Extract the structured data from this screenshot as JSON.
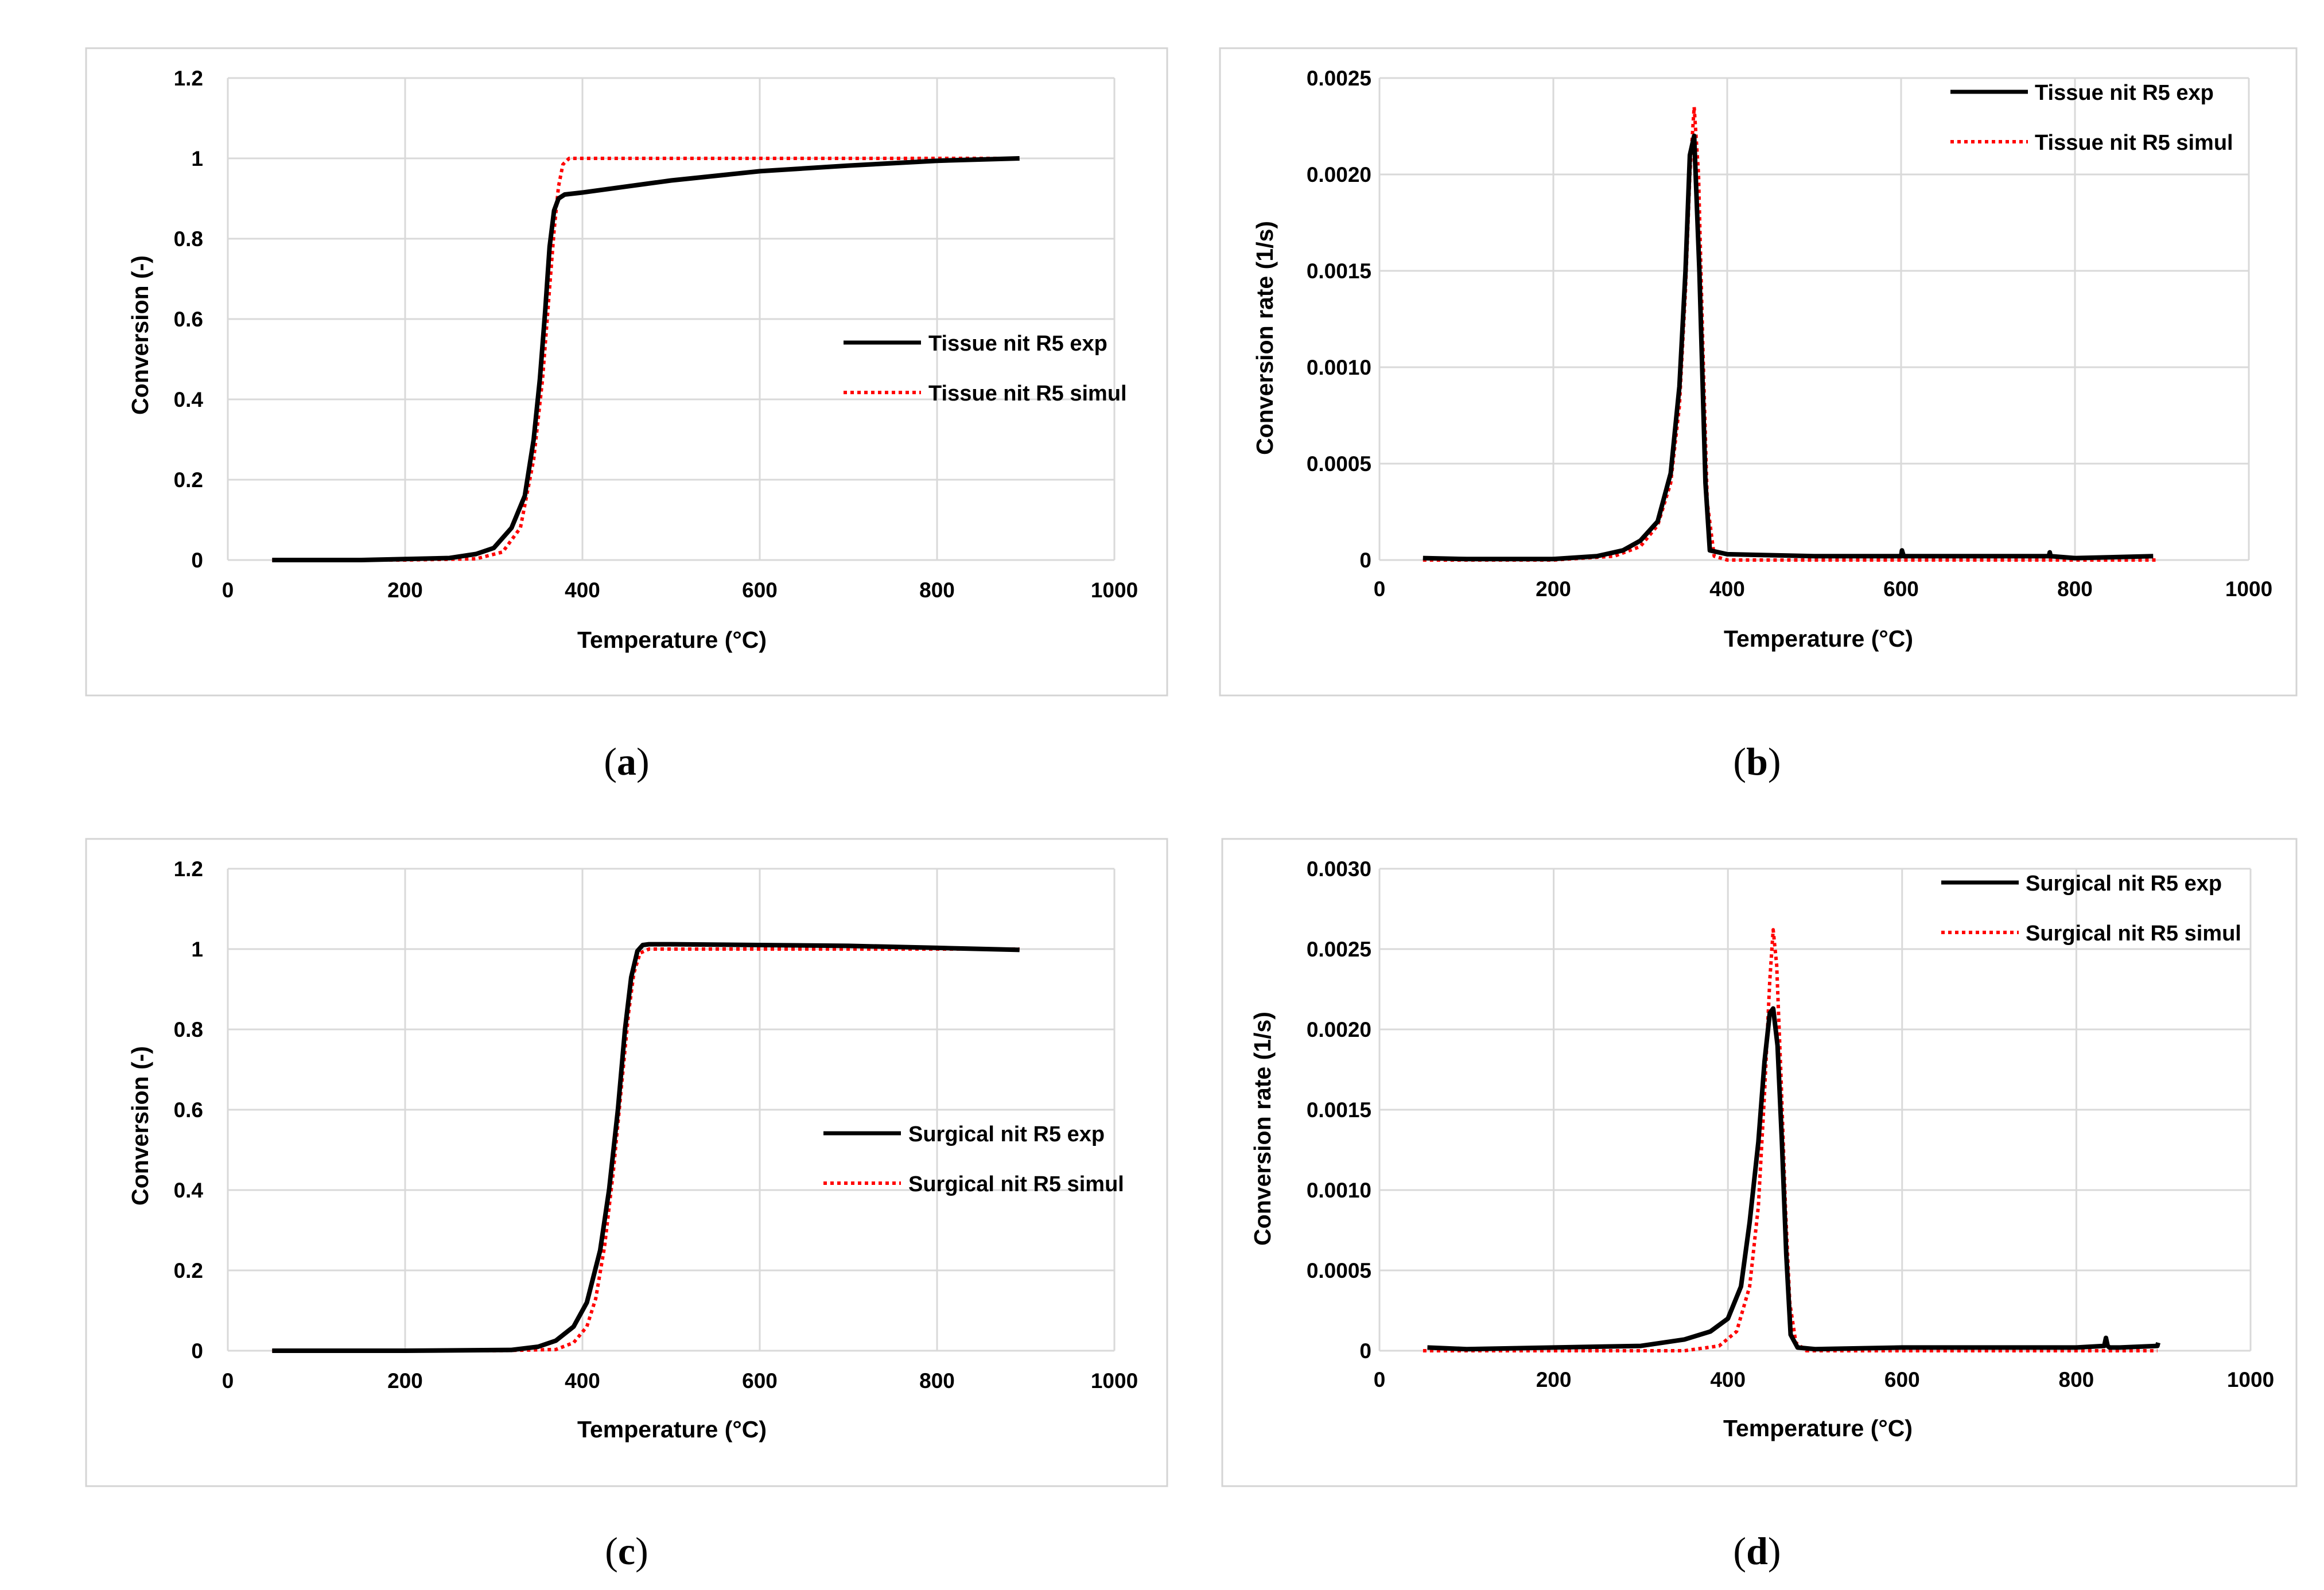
{
  "captions": [
    {
      "open": "(",
      "letter": "a",
      "close": ")"
    },
    {
      "open": "(",
      "letter": "b",
      "close": ")"
    },
    {
      "open": "(",
      "letter": "c",
      "close": ")"
    },
    {
      "open": "(",
      "letter": "d",
      "close": ")"
    }
  ],
  "colors": {
    "exp": "#000000",
    "simul": "#ff0000"
  },
  "chart_data": [
    {
      "id": "a",
      "type": "line",
      "xlabel": "Temperature (°C)",
      "ylabel": "Conversion (-)",
      "xlim": [
        0,
        1000
      ],
      "ylim": [
        0,
        1.2
      ],
      "xticks": [
        0,
        200,
        400,
        600,
        800,
        1000
      ],
      "yticks": [
        0,
        0.2,
        0.4,
        0.6,
        0.8,
        1,
        1.2
      ],
      "yticklabels": [
        "0",
        "0.2",
        "0.4",
        "0.6",
        "0.8",
        "1",
        "1.2"
      ],
      "legend_position": "center-right",
      "series": [
        {
          "name": "Tissue nit R5 exp",
          "style": "solid",
          "x": [
            50,
            150,
            250,
            280,
            300,
            320,
            335,
            345,
            352,
            358,
            363,
            368,
            373,
            380,
            400,
            500,
            600,
            700,
            800,
            893
          ],
          "y": [
            0,
            0,
            0.005,
            0.015,
            0.03,
            0.08,
            0.16,
            0.3,
            0.45,
            0.62,
            0.78,
            0.87,
            0.9,
            0.91,
            0.915,
            0.945,
            0.968,
            0.982,
            0.994,
            1.0
          ]
        },
        {
          "name": "Tissue nit R5 simul",
          "style": "dotted",
          "x": [
            50,
            200,
            280,
            310,
            330,
            345,
            355,
            362,
            368,
            373,
            378,
            385,
            400,
            600,
            893
          ],
          "y": [
            0,
            0,
            0.003,
            0.02,
            0.08,
            0.25,
            0.45,
            0.65,
            0.82,
            0.93,
            0.985,
            1.0,
            1.0,
            1.0,
            1.0
          ]
        }
      ]
    },
    {
      "id": "b",
      "type": "line",
      "xlabel": "Temperature (°C)",
      "ylabel": "Conversion rate (1/s)",
      "xlim": [
        0,
        1000
      ],
      "ylim": [
        0,
        0.0025
      ],
      "xticks": [
        0,
        200,
        400,
        600,
        800,
        1000
      ],
      "yticks": [
        0,
        0.0005,
        0.001,
        0.0015,
        0.002,
        0.0025
      ],
      "yticklabels": [
        "0",
        "0.0005",
        "0.0010",
        "0.0015",
        "0.0020",
        "0.0025"
      ],
      "legend_position": "top-right",
      "series": [
        {
          "name": "Tissue nit R5 exp",
          "style": "solid",
          "x": [
            50,
            100,
            200,
            250,
            280,
            300,
            320,
            335,
            345,
            352,
            357,
            362,
            368,
            375,
            380,
            400,
            500,
            600,
            601,
            603,
            700,
            770,
            771,
            772,
            800,
            890
          ],
          "y": [
            1e-05,
            5e-06,
            5e-06,
            2e-05,
            5e-05,
            0.0001,
            0.0002,
            0.00045,
            0.0009,
            0.0015,
            0.0021,
            0.0022,
            0.0015,
            0.0004,
            5e-05,
            3e-05,
            2e-05,
            2e-05,
            5e-05,
            2e-05,
            2e-05,
            2e-05,
            4e-05,
            2e-05,
            1e-05,
            2e-05
          ]
        },
        {
          "name": "Tissue nit R5 simul",
          "style": "dotted",
          "x": [
            50,
            200,
            270,
            300,
            320,
            335,
            345,
            352,
            357,
            362,
            367,
            372,
            377,
            385,
            400,
            893
          ],
          "y": [
            0,
            0,
            2e-05,
            7e-05,
            0.00018,
            0.0004,
            0.0008,
            0.0014,
            0.002,
            0.00235,
            0.002,
            0.0011,
            0.0003,
            2e-05,
            0,
            0
          ]
        }
      ]
    },
    {
      "id": "c",
      "type": "line",
      "xlabel": "Temperature (°C)",
      "ylabel": "Conversion (-)",
      "xlim": [
        0,
        1000
      ],
      "ylim": [
        0,
        1.2
      ],
      "xticks": [
        0,
        200,
        400,
        600,
        800,
        1000
      ],
      "yticks": [
        0,
        0.2,
        0.4,
        0.6,
        0.8,
        1,
        1.2
      ],
      "yticklabels": [
        "0",
        "0.2",
        "0.4",
        "0.6",
        "0.8",
        "1",
        "1.2"
      ],
      "legend_position": "center-right",
      "series": [
        {
          "name": "Surgical nit R5 exp",
          "style": "solid",
          "x": [
            50,
            200,
            320,
            350,
            370,
            390,
            405,
            420,
            430,
            440,
            448,
            455,
            462,
            468,
            475,
            500,
            600,
            700,
            800,
            893
          ],
          "y": [
            0,
            0,
            0.002,
            0.01,
            0.025,
            0.06,
            0.12,
            0.25,
            0.4,
            0.6,
            0.8,
            0.93,
            0.995,
            1.01,
            1.012,
            1.012,
            1.01,
            1.008,
            1.003,
            0.998
          ]
        },
        {
          "name": "Surgical nit R5 simul",
          "style": "dotted",
          "x": [
            50,
            300,
            370,
            390,
            405,
            415,
            425,
            435,
            445,
            452,
            458,
            465,
            475,
            500,
            893
          ],
          "y": [
            0,
            0,
            0.003,
            0.02,
            0.06,
            0.13,
            0.26,
            0.45,
            0.68,
            0.84,
            0.94,
            0.99,
            1.0,
            1.0,
            1.0
          ]
        }
      ]
    },
    {
      "id": "d",
      "type": "line",
      "xlabel": "Temperature (°C)",
      "ylabel": "Conversion rate (1/s)",
      "xlim": [
        0,
        1000
      ],
      "ylim": [
        0,
        0.003
      ],
      "xticks": [
        0,
        200,
        400,
        600,
        800,
        1000
      ],
      "yticks": [
        0,
        0.0005,
        0.001,
        0.0015,
        0.002,
        0.0025,
        0.003
      ],
      "yticklabels": [
        "0",
        "0.0005",
        "0.0010",
        "0.0015",
        "0.0020",
        "0.0025",
        "0.0030"
      ],
      "legend_position": "top-right",
      "series": [
        {
          "name": "Surgical nit R5 exp",
          "style": "solid",
          "x": [
            55,
            100,
            200,
            300,
            350,
            380,
            400,
            415,
            425,
            435,
            442,
            448,
            452,
            457,
            462,
            467,
            472,
            480,
            500,
            600,
            700,
            800,
            832,
            834,
            836,
            838,
            850,
            893,
            894
          ],
          "y": [
            2e-05,
            1e-05,
            2e-05,
            3e-05,
            7e-05,
            0.00012,
            0.0002,
            0.0004,
            0.0008,
            0.0013,
            0.0018,
            0.0021,
            0.00213,
            0.0019,
            0.0013,
            0.0006,
            0.0001,
            2e-05,
            1e-05,
            2e-05,
            2e-05,
            2e-05,
            3e-05,
            8e-05,
            3e-05,
            2e-05,
            2e-05,
            3e-05,
            5e-05
          ]
        },
        {
          "name": "Surgical nit R5 simul",
          "style": "dotted",
          "x": [
            50,
            350,
            390,
            410,
            425,
            435,
            442,
            448,
            452,
            456,
            461,
            466,
            471,
            478,
            490,
            893
          ],
          "y": [
            0,
            0,
            3e-05,
            0.00012,
            0.0004,
            0.0009,
            0.0016,
            0.0023,
            0.00262,
            0.0024,
            0.0017,
            0.0009,
            0.0003,
            5e-05,
            0,
            0
          ]
        }
      ]
    }
  ]
}
